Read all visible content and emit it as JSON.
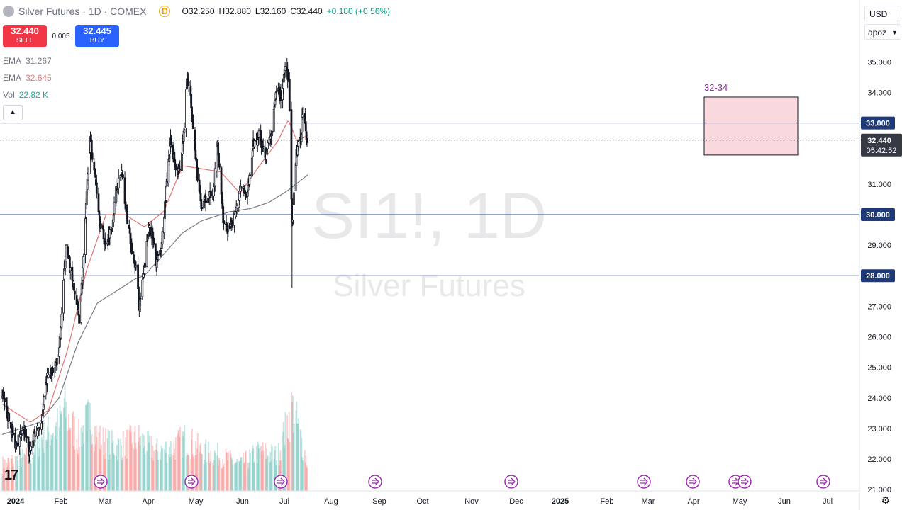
{
  "header": {
    "title": "Silver Futures · 1D · COMEX",
    "source_badge": "D",
    "open_label": "O",
    "open": "32.250",
    "high_label": "H",
    "high": "32.880",
    "low_label": "L",
    "low": "32.160",
    "close_label": "C",
    "close": "32.440",
    "change": "+0.180 (+0.56%)"
  },
  "trade": {
    "sell_price": "32.440",
    "sell_label": "SELL",
    "spread": "0.005",
    "buy_price": "32.445",
    "buy_label": "BUY"
  },
  "indicators": [
    {
      "name": "EMA",
      "value": "31.267",
      "color": "#787b86"
    },
    {
      "name": "EMA",
      "value": "32.645",
      "color": "#e57373"
    },
    {
      "name": "Vol",
      "value": "22.82 K",
      "color": "#26a69a"
    }
  ],
  "controls": {
    "collapse_icon": "chevron-up-icon",
    "currency": "USD",
    "unit": "apoz",
    "settings_icon": "gear-icon"
  },
  "watermark": {
    "symbol": "SI1!, 1D",
    "name": "Silver Futures"
  },
  "chart_data": {
    "type": "candlestick",
    "y_axis": {
      "ticks": [
        "35.000",
        "34.000",
        "33.000",
        "32.000",
        "31.000",
        "30.000",
        "29.000",
        "28.000",
        "27.000",
        "26.000",
        "25.000",
        "24.000",
        "23.000",
        "22.000",
        "21.000"
      ],
      "range": [
        20.85,
        35.85
      ]
    },
    "x_axis": {
      "ticks": [
        "2024",
        "Feb",
        "Mar",
        "Apr",
        "May",
        "Jun",
        "Jul",
        "Aug",
        "Sep",
        "Oct",
        "Nov",
        "Dec",
        "2025",
        "Feb",
        "Mar",
        "Apr",
        "May",
        "Jun",
        "Jul"
      ]
    },
    "horizontal_lines": [
      {
        "label": "33.000",
        "value": 33.0
      },
      {
        "label": "30.000",
        "value": 30.0
      },
      {
        "label": "28.000",
        "value": 28.0
      }
    ],
    "current_price": {
      "label": "32.440",
      "countdown": "05:42:52",
      "value": 32.44
    },
    "zone": {
      "label": "32-34",
      "from": 31.95,
      "to": 33.85,
      "color": "#f7c9ce"
    },
    "price_anchors": [
      [
        "Jan 1",
        24.0
      ],
      [
        "Jan 10",
        23.4
      ],
      [
        "Jan 22",
        22.5
      ],
      [
        "Feb 5",
        22.9
      ],
      [
        "Feb 13",
        22.2
      ],
      [
        "Feb 22",
        22.8
      ],
      [
        "Mar 4",
        23.2
      ],
      [
        "Mar 13",
        24.7
      ],
      [
        "Mar 22",
        24.8
      ],
      [
        "Apr 1",
        25.5
      ],
      [
        "Apr 8",
        27.8
      ],
      [
        "Apr 12",
        28.9
      ],
      [
        "Apr 19",
        28.2
      ],
      [
        "Apr 28",
        27.2
      ],
      [
        "May 3",
        26.6
      ],
      [
        "May 10",
        28.5
      ],
      [
        "May 17",
        31.5
      ],
      [
        "May 21",
        32.4
      ],
      [
        "May 29",
        31.2
      ],
      [
        "Jun 5",
        29.8
      ],
      [
        "Jun 14",
        29.0
      ],
      [
        "Jun 24",
        29.6
      ],
      [
        "Jul 1",
        30.8
      ],
      [
        "Jul 10",
        31.4
      ],
      [
        "Jul 18",
        30.0
      ],
      [
        "Jul 26",
        28.8
      ],
      [
        "Aug 2",
        28.2
      ],
      [
        "Aug 7",
        27.0
      ],
      [
        "Aug 14",
        28.0
      ],
      [
        "Aug 23",
        29.8
      ],
      [
        "Sep 3",
        28.5
      ],
      [
        "Sep 10",
        28.7
      ],
      [
        "Sep 20",
        31.0
      ],
      [
        "Sep 26",
        32.4
      ],
      [
        "Oct 4",
        31.6
      ],
      [
        "Oct 11",
        31.5
      ],
      [
        "Oct 18",
        32.8
      ],
      [
        "Oct 22",
        34.6
      ],
      [
        "Oct 30",
        33.5
      ],
      [
        "Nov 5",
        31.8
      ],
      [
        "Nov 14",
        30.2
      ],
      [
        "Nov 25",
        30.7
      ],
      [
        "Dec 3",
        30.6
      ],
      [
        "Dec 10",
        32.4
      ],
      [
        "Dec 20",
        29.6
      ],
      [
        "Dec 31",
        29.5
      ],
      [
        "Jan 8",
        30.2
      ],
      [
        "Jan 17",
        31.0
      ],
      [
        "Jan 27",
        30.6
      ],
      [
        "Feb 5",
        32.3
      ],
      [
        "Feb 14",
        32.6
      ],
      [
        "Feb 24",
        32.0
      ],
      [
        "Mar 5",
        32.6
      ],
      [
        "Mar 14",
        34.2
      ],
      [
        "Mar 21",
        33.8
      ],
      [
        "Mar 27",
        35.0
      ],
      [
        "Apr 2",
        34.2
      ],
      [
        "Apr 7",
        29.6
      ],
      [
        "Apr 9",
        30.2
      ],
      [
        "Apr 14",
        32.0
      ],
      [
        "Apr 21",
        32.5
      ],
      [
        "Apr 24",
        33.4
      ],
      [
        "Apr 29",
        32.9
      ],
      [
        "May 1",
        32.3
      ],
      [
        "May 2",
        32.44
      ]
    ],
    "ema_slow_anchors": [
      [
        "Jan 1",
        22.8
      ],
      [
        "Mar 1",
        23.2
      ],
      [
        "Apr 1",
        24.0
      ],
      [
        "May 1",
        25.8
      ],
      [
        "Jun 1",
        27.1
      ],
      [
        "Aug 1",
        27.9
      ],
      [
        "Aug 15",
        28.0
      ],
      [
        "Sep 15",
        28.7
      ],
      [
        "Oct 15",
        29.4
      ],
      [
        "Nov 15",
        29.8
      ],
      [
        "Dec 31",
        30.1
      ],
      [
        "Feb 1",
        30.2
      ],
      [
        "Mar 1",
        30.4
      ],
      [
        "Apr 1",
        30.8
      ],
      [
        "May 2",
        31.3
      ]
    ],
    "ema_fast_anchors": [
      [
        "Jan 1",
        23.8
      ],
      [
        "Feb 15",
        23.2
      ],
      [
        "Mar 15",
        23.6
      ],
      [
        "Apr 15",
        25.6
      ],
      [
        "May 15",
        28.2
      ],
      [
        "Jun 15",
        30.0
      ],
      [
        "Jul 15",
        30.0
      ],
      [
        "Aug 15",
        29.6
      ],
      [
        "Sep 15",
        30.1
      ],
      [
        "Oct 15",
        31.6
      ],
      [
        "Nov 15",
        31.5
      ],
      [
        "Dec 15",
        31.4
      ],
      [
        "Jan 15",
        30.7
      ],
      [
        "Feb 15",
        31.6
      ],
      [
        "Mar 15",
        32.4
      ],
      [
        "Apr 1",
        33.1
      ],
      [
        "Apr 15",
        32.4
      ],
      [
        "May 2",
        32.6
      ]
    ],
    "volume_anchors": [
      [
        "Jan 1",
        0.3
      ],
      [
        "Feb 15",
        0.4
      ],
      [
        "Mar 1",
        0.6
      ],
      [
        "Apr 1",
        0.75
      ],
      [
        "Apr 8",
        0.95
      ],
      [
        "May 1",
        0.6
      ],
      [
        "May 20",
        0.85
      ],
      [
        "Jun 1",
        0.6
      ],
      [
        "Jul 1",
        0.5
      ],
      [
        "Aug 5",
        0.6
      ],
      [
        "Sep 1",
        0.45
      ],
      [
        "Oct 1",
        0.5
      ],
      [
        "Oct 20",
        0.6
      ],
      [
        "Nov 15",
        0.45
      ],
      [
        "Dec 15",
        0.4
      ],
      [
        "Jan 15",
        0.3
      ],
      [
        "Feb 15",
        0.45
      ],
      [
        "Mar 15",
        0.4
      ],
      [
        "Apr 7",
        0.95
      ],
      [
        "Apr 15",
        0.75
      ],
      [
        "May 2",
        0.3
      ]
    ],
    "event_markers": [
      "Mar",
      "May",
      "Jul",
      "Sep",
      "Nov",
      "Mar",
      "Apr",
      "May",
      "May",
      "Jul"
    ]
  }
}
